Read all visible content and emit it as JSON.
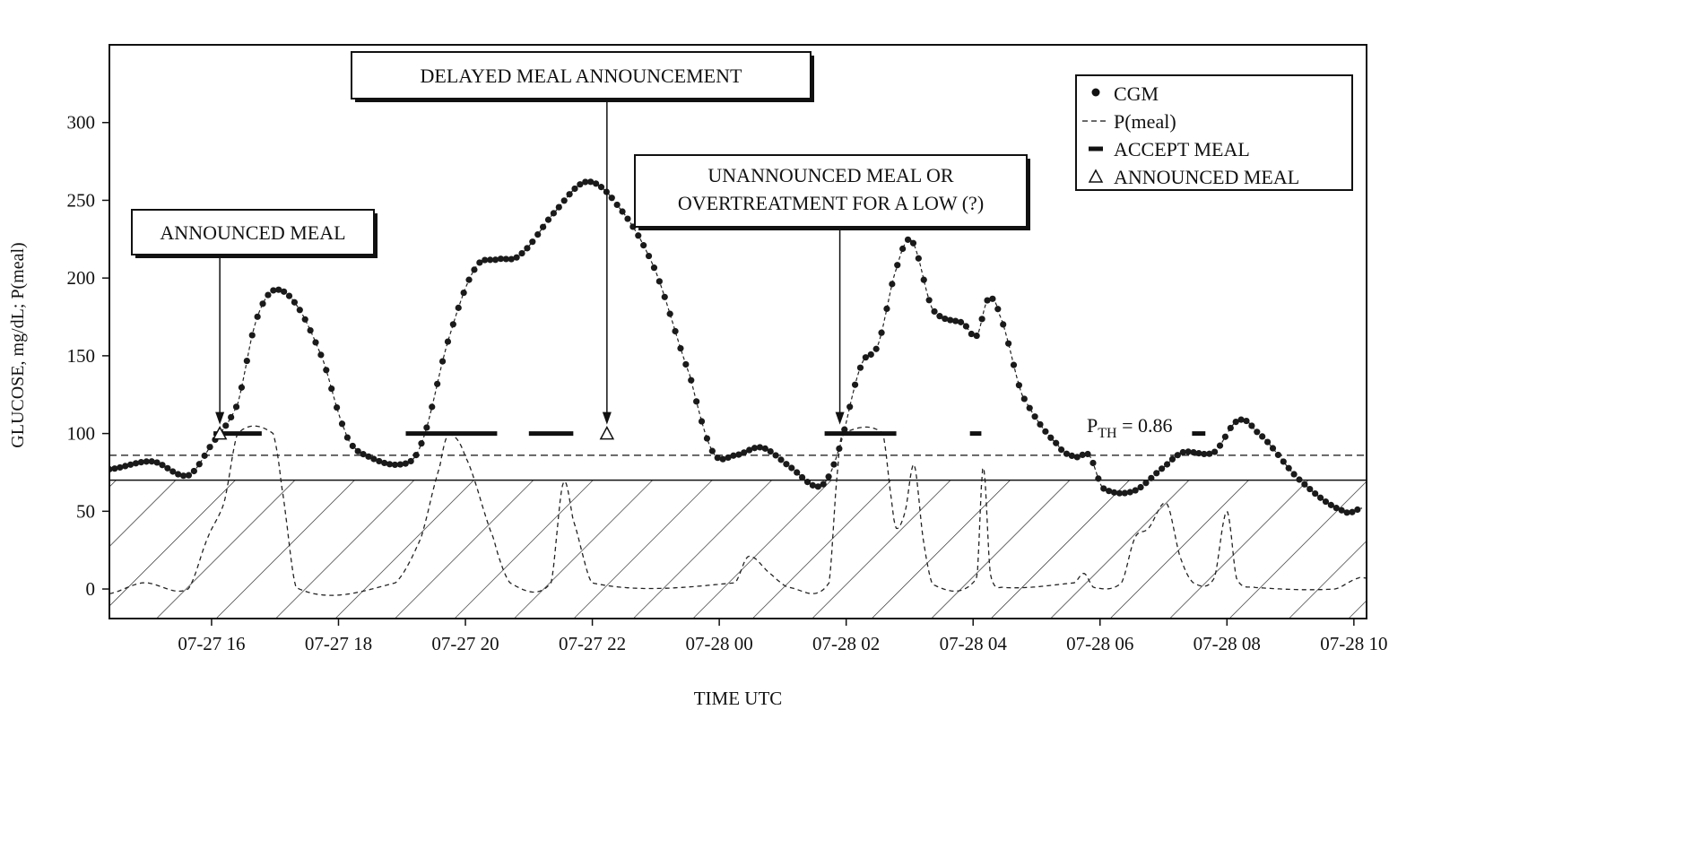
{
  "chart_data": {
    "type": "line",
    "xlabel": "TIME UTC",
    "ylabel": "GLUCOSE, mg/dL; P(meal)",
    "x_units": "hours since 07-27 00:00 UTC",
    "xlim": [
      14.39,
      34.2
    ],
    "ylim": [
      -19,
      350
    ],
    "yticks": [
      0,
      50,
      100,
      150,
      200,
      250,
      300
    ],
    "xticks": [
      {
        "h": 16,
        "label": "07-27 16"
      },
      {
        "h": 18,
        "label": "07-27 18"
      },
      {
        "h": 20,
        "label": "07-27 20"
      },
      {
        "h": 22,
        "label": "07-27 22"
      },
      {
        "h": 24,
        "label": "07-28 00"
      },
      {
        "h": 26,
        "label": "07-28 02"
      },
      {
        "h": 28,
        "label": "07-28 04"
      },
      {
        "h": 30,
        "label": "07-28 06"
      },
      {
        "h": 32,
        "label": "07-28 08"
      },
      {
        "h": 34,
        "label": "07-28 10"
      }
    ],
    "hypo_threshold": 70,
    "p_threshold_line": 86,
    "p_threshold_label": {
      "main": "P",
      "sub": "TH",
      "rest": " = 0.86"
    },
    "legend": {
      "position": "top-right",
      "entries": [
        {
          "marker": "dot",
          "label": "CGM"
        },
        {
          "marker": "dash",
          "label": "P(meal)"
        },
        {
          "marker": "bar",
          "label": "ACCEPT MEAL"
        },
        {
          "marker": "triangle",
          "label": "ANNOUNCED MEAL"
        }
      ]
    },
    "series": [
      {
        "name": "CGM",
        "points": [
          [
            14.39,
            77
          ],
          [
            15.07,
            82
          ],
          [
            15.63,
            73
          ],
          [
            16.0,
            93
          ],
          [
            16.41,
            119
          ],
          [
            16.69,
            171
          ],
          [
            16.97,
            192
          ],
          [
            17.33,
            183
          ],
          [
            17.75,
            148
          ],
          [
            18.1,
            102
          ],
          [
            18.32,
            88
          ],
          [
            18.95,
            80
          ],
          [
            19.3,
            93
          ],
          [
            19.73,
            160
          ],
          [
            20.15,
            206
          ],
          [
            20.5,
            212
          ],
          [
            20.86,
            215
          ],
          [
            21.42,
            243
          ],
          [
            21.92,
            262
          ],
          [
            22.41,
            246
          ],
          [
            22.98,
            206
          ],
          [
            23.54,
            137
          ],
          [
            23.9,
            88
          ],
          [
            24.25,
            86
          ],
          [
            24.67,
            91
          ],
          [
            25.1,
            79
          ],
          [
            25.59,
            66
          ],
          [
            25.87,
            88
          ],
          [
            26.23,
            143
          ],
          [
            26.5,
            157
          ],
          [
            26.79,
            206
          ],
          [
            27.03,
            224
          ],
          [
            27.36,
            180
          ],
          [
            27.85,
            171
          ],
          [
            28.06,
            163
          ],
          [
            28.23,
            186
          ],
          [
            28.41,
            177
          ],
          [
            28.77,
            125
          ],
          [
            29.33,
            93
          ],
          [
            29.62,
            85
          ],
          [
            29.83,
            86
          ],
          [
            30.04,
            65
          ],
          [
            30.53,
            63
          ],
          [
            31.03,
            79
          ],
          [
            31.31,
            88
          ],
          [
            31.8,
            88
          ],
          [
            32.16,
            108
          ],
          [
            32.44,
            102
          ],
          [
            33.15,
            70
          ],
          [
            33.85,
            50
          ],
          [
            34.13,
            52
          ]
        ]
      },
      {
        "name": "P(meal)",
        "scale_note": "plotted x100",
        "points": [
          [
            14.39,
            -3
          ],
          [
            14.93,
            4
          ],
          [
            15.63,
            0
          ],
          [
            15.94,
            33
          ],
          [
            16.2,
            56
          ],
          [
            16.41,
            100
          ],
          [
            16.97,
            100
          ],
          [
            17.1,
            67
          ],
          [
            17.33,
            1
          ],
          [
            18.9,
            4
          ],
          [
            19.3,
            33
          ],
          [
            19.6,
            79
          ],
          [
            19.73,
            99
          ],
          [
            20.0,
            85
          ],
          [
            20.44,
            33
          ],
          [
            20.7,
            4
          ],
          [
            21.35,
            4
          ],
          [
            21.54,
            68
          ],
          [
            21.7,
            44
          ],
          [
            21.99,
            4
          ],
          [
            24.25,
            4
          ],
          [
            24.46,
            21
          ],
          [
            24.8,
            10
          ],
          [
            25.1,
            1
          ],
          [
            25.73,
            4
          ],
          [
            25.87,
            79
          ],
          [
            25.94,
            100
          ],
          [
            26.58,
            100
          ],
          [
            26.72,
            56
          ],
          [
            26.79,
            39
          ],
          [
            26.93,
            50
          ],
          [
            27.07,
            80
          ],
          [
            27.21,
            33
          ],
          [
            27.36,
            3
          ],
          [
            28.06,
            7
          ],
          [
            28.16,
            79
          ],
          [
            28.27,
            10
          ],
          [
            28.48,
            1
          ],
          [
            29.6,
            4
          ],
          [
            29.75,
            10
          ],
          [
            29.9,
            1
          ],
          [
            30.34,
            4
          ],
          [
            30.55,
            33
          ],
          [
            30.76,
            39
          ],
          [
            31.05,
            55
          ],
          [
            31.26,
            21
          ],
          [
            31.47,
            4
          ],
          [
            31.8,
            7
          ],
          [
            32.0,
            50
          ],
          [
            32.15,
            7
          ],
          [
            32.44,
            1
          ],
          [
            33.7,
            0
          ],
          [
            34.07,
            7
          ],
          [
            34.2,
            7
          ]
        ]
      }
    ],
    "accept_meal": [
      [
        16.03,
        16.79
      ],
      [
        19.06,
        20.5
      ],
      [
        21.0,
        21.7
      ],
      [
        25.66,
        26.79
      ],
      [
        27.95,
        28.13
      ],
      [
        31.45,
        31.66
      ]
    ],
    "accept_meal_level": 100,
    "announced_meal": [
      16.13,
      22.23
    ],
    "announced_meal_level": 100,
    "annotations": [
      {
        "text": [
          "ANNOUNCED MEAL"
        ],
        "arrow_h": 16.13,
        "arrow_to": 100
      },
      {
        "text": [
          "DELAYED MEAL ANNOUNCEMENT"
        ],
        "arrow_h": 22.23,
        "arrow_to": 100
      },
      {
        "text": [
          "UNANNOUNCED MEAL OR",
          "OVERTREATMENT FOR A LOW (?)"
        ],
        "arrow_h": 25.9,
        "arrow_to": 100
      }
    ]
  }
}
